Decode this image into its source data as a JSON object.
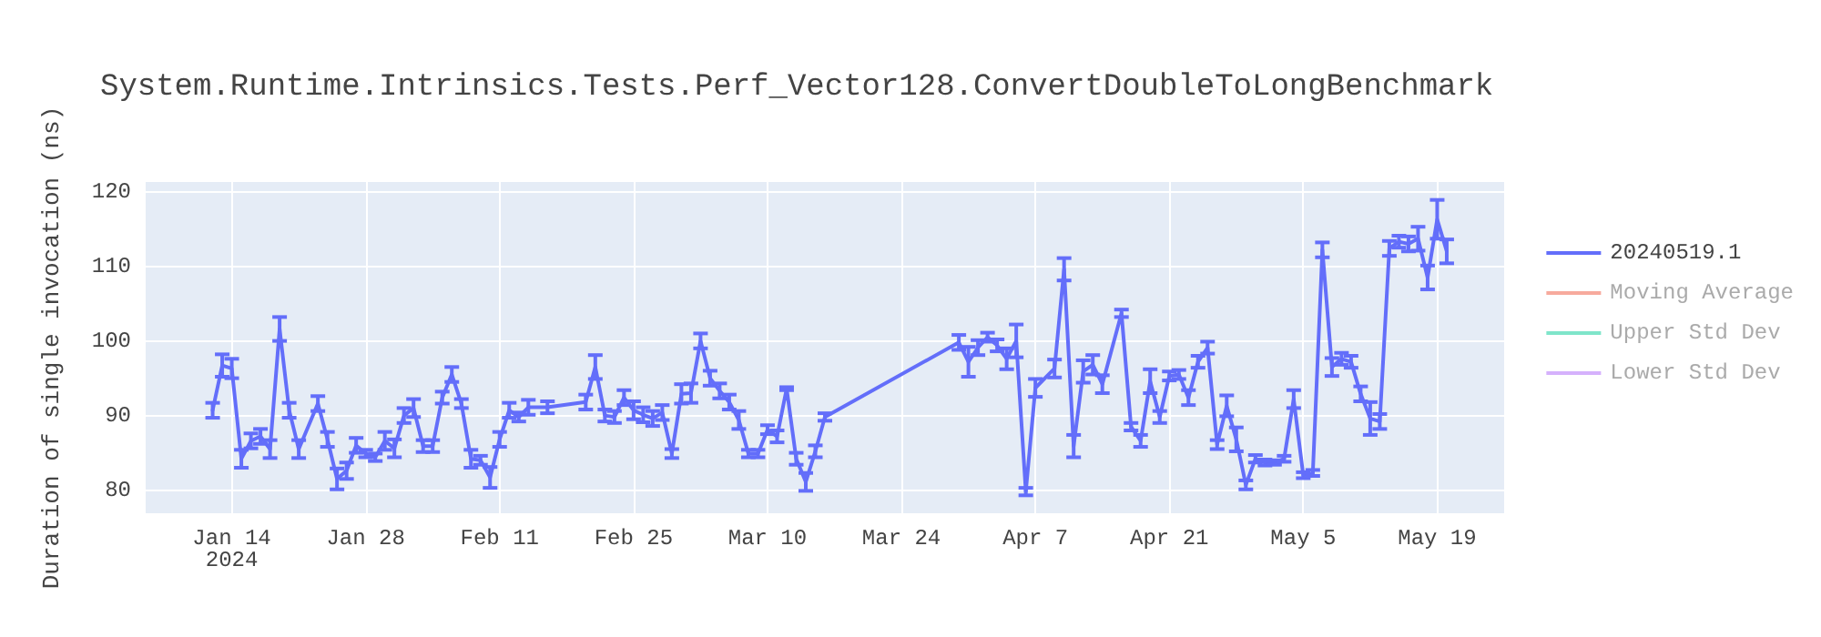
{
  "chart_data": {
    "type": "line",
    "title": "System.Runtime.Intrinsics.Tests.Perf_Vector128.ConvertDoubleToLongBenchmark",
    "ylabel": "Duration of single invocation (ns)",
    "xlim": [
      "2024-01-05",
      "2024-05-26"
    ],
    "xticks": [
      {
        "value": "2024-01-14",
        "label": "Jan 14\n2024"
      },
      {
        "value": "2024-01-28",
        "label": "Jan 28"
      },
      {
        "value": "2024-02-11",
        "label": "Feb 11"
      },
      {
        "value": "2024-02-25",
        "label": "Feb 25"
      },
      {
        "value": "2024-03-10",
        "label": "Mar 10"
      },
      {
        "value": "2024-03-24",
        "label": "Mar 24"
      },
      {
        "value": "2024-04-07",
        "label": "Apr 7"
      },
      {
        "value": "2024-04-21",
        "label": "Apr 21"
      },
      {
        "value": "2024-05-05",
        "label": "May 5"
      },
      {
        "value": "2024-05-19",
        "label": "May 19"
      }
    ],
    "ylim": [
      76.9,
      121.3
    ],
    "yticks": [
      80,
      90,
      100,
      110,
      120
    ],
    "grid": true,
    "legend": "top right",
    "marker": "none",
    "line_style": "solid",
    "series": [
      {
        "name": "20240519.1",
        "color": "#636efa",
        "x": [
          "2024-01-12",
          "2024-01-13",
          "2024-01-14",
          "2024-01-15",
          "2024-01-16",
          "2024-01-17",
          "2024-01-18",
          "2024-01-19",
          "2024-01-20",
          "2024-01-21",
          "2024-01-23",
          "2024-01-24",
          "2024-01-25",
          "2024-01-26",
          "2024-01-27",
          "2024-01-28",
          "2024-01-29",
          "2024-01-30",
          "2024-01-31",
          "2024-02-01",
          "2024-02-02",
          "2024-02-03",
          "2024-02-04",
          "2024-02-05",
          "2024-02-06",
          "2024-02-07",
          "2024-02-08",
          "2024-02-09",
          "2024-02-10",
          "2024-02-11",
          "2024-02-12",
          "2024-02-13",
          "2024-02-14",
          "2024-02-16",
          "2024-02-20",
          "2024-02-21",
          "2024-02-22",
          "2024-02-23",
          "2024-02-24",
          "2024-02-25",
          "2024-02-26",
          "2024-02-27",
          "2024-02-28",
          "2024-02-29",
          "2024-03-01",
          "2024-03-02",
          "2024-03-03",
          "2024-03-04",
          "2024-03-05",
          "2024-03-06",
          "2024-03-07",
          "2024-03-08",
          "2024-03-09",
          "2024-03-10",
          "2024-03-11",
          "2024-03-12",
          "2024-03-13",
          "2024-03-14",
          "2024-03-15",
          "2024-03-16",
          "2024-03-30",
          "2024-03-31",
          "2024-04-01",
          "2024-04-02",
          "2024-04-03",
          "2024-04-04",
          "2024-04-05",
          "2024-04-06",
          "2024-04-07",
          "2024-04-09",
          "2024-04-10",
          "2024-04-11",
          "2024-04-12",
          "2024-04-13",
          "2024-04-14",
          "2024-04-16",
          "2024-04-17",
          "2024-04-18",
          "2024-04-19",
          "2024-04-20",
          "2024-04-21",
          "2024-04-22",
          "2024-04-23",
          "2024-04-24",
          "2024-04-25",
          "2024-04-26",
          "2024-04-27",
          "2024-04-28",
          "2024-04-29",
          "2024-04-30",
          "2024-05-01",
          "2024-05-02",
          "2024-05-03",
          "2024-05-04",
          "2024-05-05",
          "2024-05-06",
          "2024-05-07",
          "2024-05-08",
          "2024-05-09",
          "2024-05-10",
          "2024-05-11",
          "2024-05-12",
          "2024-05-13",
          "2024-05-14",
          "2024-05-15",
          "2024-05-16",
          "2024-05-17",
          "2024-05-18",
          "2024-05-19",
          "2024-05-20"
        ],
        "values": [
          90.7,
          96.7,
          96.3,
          84.2,
          86.6,
          87.2,
          85.5,
          101.6,
          90.7,
          85.5,
          91.6,
          86.8,
          81.5,
          82.6,
          86,
          84.9,
          84.4,
          86.6,
          85.6,
          90,
          91,
          85.9,
          85.9,
          92.4,
          95.5,
          91.6,
          84.2,
          84,
          81.7,
          86.8,
          90.7,
          89.8,
          91.1,
          91.1,
          91.8,
          96.5,
          90,
          89.8,
          92.4,
          90.7,
          90.1,
          89.6,
          90.4,
          84.9,
          92.9,
          93,
          100,
          95,
          93.3,
          91.8,
          89.4,
          84.9,
          84.9,
          88.1,
          87.2,
          93.6,
          84.2,
          81.1,
          85.2,
          89.8,
          99.8,
          97.2,
          99.1,
          100.5,
          99.4,
          97.6,
          100,
          79.8,
          93.7,
          96.3,
          109.6,
          85.9,
          95.9,
          96.8,
          94.2,
          103.7,
          88.5,
          86.6,
          94.6,
          89.8,
          95.3,
          95.5,
          92.4,
          97.2,
          99.1,
          86.1,
          91.3,
          86.8,
          80.7,
          84.2,
          83.7,
          83.7,
          84.2,
          92.2,
          82,
          82.3,
          112.2,
          96.5,
          97.6,
          97.2,
          92.9,
          89.6,
          89.2,
          112.4,
          113.3,
          113,
          113.7,
          108.5,
          116.3,
          112
        ],
        "errors": [
          1,
          1.5,
          1.3,
          1.2,
          1,
          1,
          1.2,
          1.6,
          1,
          1.2,
          1,
          1,
          1.4,
          1.1,
          1,
          0.5,
          0.5,
          1.2,
          1.2,
          1,
          1.2,
          0.8,
          0.8,
          0.8,
          1,
          0.6,
          1.2,
          0.6,
          1.4,
          1,
          1,
          0.6,
          1,
          0.8,
          1,
          1.6,
          0.8,
          0.8,
          1,
          1.2,
          1,
          1,
          1,
          0.6,
          1.3,
          1.3,
          1,
          1,
          1,
          1,
          1.2,
          0.5,
          0.5,
          0.6,
          0.8,
          0.2,
          0.8,
          1.2,
          0.8,
          0.5,
          1,
          2,
          1,
          0.6,
          0.8,
          1.4,
          2.2,
          0.5,
          1.2,
          1.2,
          1.5,
          1.5,
          1.5,
          1.3,
          1.2,
          0.5,
          0.5,
          0.8,
          1.6,
          0.8,
          0.6,
          0.6,
          1,
          0.8,
          0.8,
          0.6,
          1.4,
          1.6,
          0.6,
          0.5,
          0.4,
          0.3,
          0.4,
          1.2,
          0.4,
          0.4,
          1,
          1.2,
          0.8,
          0.8,
          1,
          2.2,
          1,
          1,
          0.8,
          1,
          1.6,
          1.6,
          2.6,
          1.6
        ]
      },
      {
        "name": "Moving Average",
        "color": "#ef553b"
      },
      {
        "name": "Upper Std Dev",
        "color": "#00cc96"
      },
      {
        "name": "Lower Std Dev",
        "color": "#ab63fa"
      }
    ]
  }
}
